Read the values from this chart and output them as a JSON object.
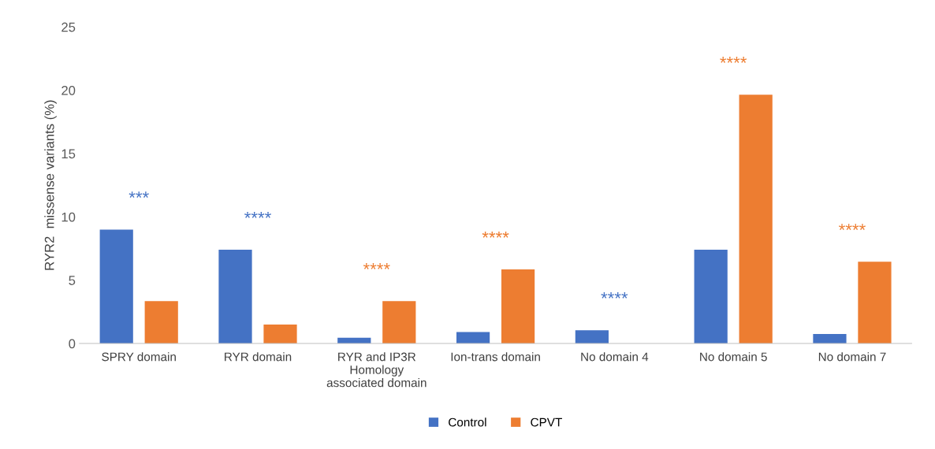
{
  "chart_data": {
    "type": "bar",
    "ylabel": "RYR2  missense variants (%)",
    "categories": [
      "SPRY domain",
      "RYR domain",
      "RYR and IP3R\nHomology\nassociated domain",
      "Ion-trans domain",
      "No domain 4",
      "No domain 5",
      "No domain 7"
    ],
    "series": [
      {
        "name": "Control",
        "color": "#4472c4",
        "values": [
          9.0,
          7.4,
          0.45,
          0.9,
          1.05,
          7.4,
          0.75
        ]
      },
      {
        "name": "CPVT",
        "color": "#ed7d31",
        "values": [
          3.35,
          1.5,
          3.35,
          5.85,
          0,
          19.65,
          6.45
        ]
      }
    ],
    "ylim": [
      0,
      25
    ],
    "yticks": [
      0,
      5,
      10,
      15,
      20,
      25
    ],
    "grid": false,
    "legend": "bottom",
    "annotations": [
      "***",
      "****",
      "****",
      "****",
      "****",
      "****",
      "****"
    ]
  }
}
